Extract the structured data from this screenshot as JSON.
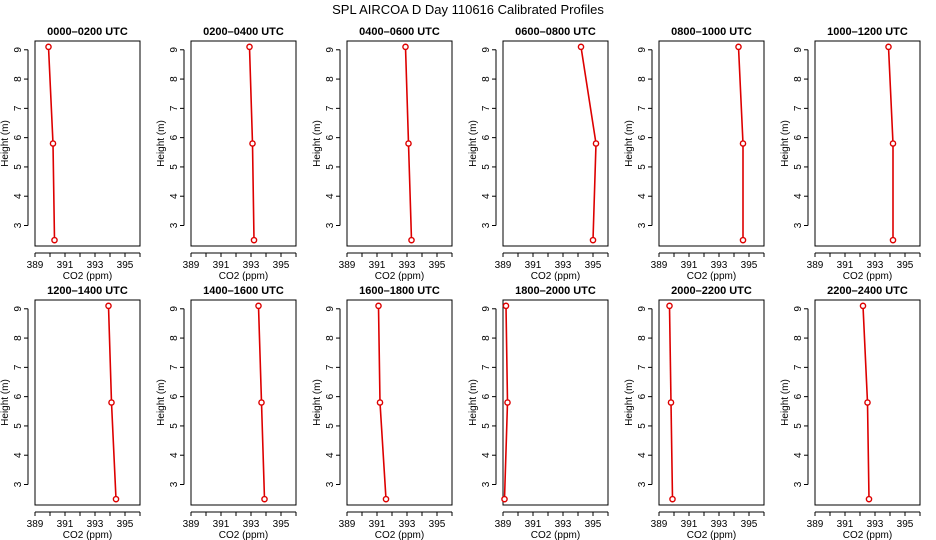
{
  "figure_title": "SPL AIRCOA D  Day 110616  Calibrated Profiles",
  "colors": {
    "series": "#dd0000",
    "axis": "#000000"
  },
  "chart_data": [
    {
      "type": "line",
      "title": "0000–0200 UTC",
      "xlabel": "CO2 (ppm)",
      "ylabel": "Height (m)",
      "xlim": [
        389,
        396
      ],
      "ylim": [
        2.3,
        9.3
      ],
      "x_ticks": [
        "389",
        "391",
        "393",
        "395"
      ],
      "y_ticks": [
        "3",
        "4",
        "5",
        "6",
        "7",
        "8",
        "9"
      ],
      "x": [
        389.9,
        390.2,
        390.3
      ],
      "y": [
        9.1,
        5.8,
        2.5
      ]
    },
    {
      "type": "line",
      "title": "0200–0400 UTC",
      "xlabel": "CO2 (ppm)",
      "ylabel": "Height (m)",
      "xlim": [
        389,
        396
      ],
      "ylim": [
        2.3,
        9.3
      ],
      "x_ticks": [
        "389",
        "391",
        "393",
        "395"
      ],
      "y_ticks": [
        "3",
        "4",
        "5",
        "6",
        "7",
        "8",
        "9"
      ],
      "x": [
        392.9,
        393.1,
        393.2
      ],
      "y": [
        9.1,
        5.8,
        2.5
      ]
    },
    {
      "type": "line",
      "title": "0400–0600 UTC",
      "xlabel": "CO2 (ppm)",
      "ylabel": "Height (m)",
      "xlim": [
        389,
        396
      ],
      "ylim": [
        2.3,
        9.3
      ],
      "x_ticks": [
        "389",
        "391",
        "393",
        "395"
      ],
      "y_ticks": [
        "3",
        "4",
        "5",
        "6",
        "7",
        "8",
        "9"
      ],
      "x": [
        392.9,
        393.1,
        393.3
      ],
      "y": [
        9.1,
        5.8,
        2.5
      ]
    },
    {
      "type": "line",
      "title": "0600–0800 UTC",
      "xlabel": "CO2 (ppm)",
      "ylabel": "Height (m)",
      "xlim": [
        389,
        396
      ],
      "ylim": [
        2.3,
        9.3
      ],
      "x_ticks": [
        "389",
        "391",
        "393",
        "395"
      ],
      "y_ticks": [
        "3",
        "4",
        "5",
        "6",
        "7",
        "8",
        "9"
      ],
      "x": [
        394.2,
        395.2,
        395.0
      ],
      "y": [
        9.1,
        5.8,
        2.5
      ]
    },
    {
      "type": "line",
      "title": "0800–1000 UTC",
      "xlabel": "CO2 (ppm)",
      "ylabel": "Height (m)",
      "xlim": [
        389,
        396
      ],
      "ylim": [
        2.3,
        9.3
      ],
      "x_ticks": [
        "389",
        "391",
        "393",
        "395"
      ],
      "y_ticks": [
        "3",
        "4",
        "5",
        "6",
        "7",
        "8",
        "9"
      ],
      "x": [
        394.3,
        394.6,
        394.6
      ],
      "y": [
        9.1,
        5.8,
        2.5
      ]
    },
    {
      "type": "line",
      "title": "1000–1200 UTC",
      "xlabel": "CO2 (ppm)",
      "ylabel": "Height (m)",
      "xlim": [
        389,
        396
      ],
      "ylim": [
        2.3,
        9.3
      ],
      "x_ticks": [
        "389",
        "391",
        "393",
        "395"
      ],
      "y_ticks": [
        "3",
        "4",
        "5",
        "6",
        "7",
        "8",
        "9"
      ],
      "x": [
        393.9,
        394.2,
        394.2
      ],
      "y": [
        9.1,
        5.8,
        2.5
      ]
    },
    {
      "type": "line",
      "title": "1200–1400 UTC",
      "xlabel": "CO2 (ppm)",
      "ylabel": "Height (m)",
      "xlim": [
        389,
        396
      ],
      "ylim": [
        2.3,
        9.3
      ],
      "x_ticks": [
        "389",
        "391",
        "393",
        "395"
      ],
      "y_ticks": [
        "3",
        "4",
        "5",
        "6",
        "7",
        "8",
        "9"
      ],
      "x": [
        393.9,
        394.1,
        394.4
      ],
      "y": [
        9.1,
        5.8,
        2.5
      ]
    },
    {
      "type": "line",
      "title": "1400–1600 UTC",
      "xlabel": "CO2 (ppm)",
      "ylabel": "Height (m)",
      "xlim": [
        389,
        396
      ],
      "ylim": [
        2.3,
        9.3
      ],
      "x_ticks": [
        "389",
        "391",
        "393",
        "395"
      ],
      "y_ticks": [
        "3",
        "4",
        "5",
        "6",
        "7",
        "8",
        "9"
      ],
      "x": [
        393.5,
        393.7,
        393.9
      ],
      "y": [
        9.1,
        5.8,
        2.5
      ]
    },
    {
      "type": "line",
      "title": "1600–1800 UTC",
      "xlabel": "CO2 (ppm)",
      "ylabel": "Height (m)",
      "xlim": [
        389,
        396
      ],
      "ylim": [
        2.3,
        9.3
      ],
      "x_ticks": [
        "389",
        "391",
        "393",
        "395"
      ],
      "y_ticks": [
        "3",
        "4",
        "5",
        "6",
        "7",
        "8",
        "9"
      ],
      "x": [
        391.1,
        391.2,
        391.6
      ],
      "y": [
        9.1,
        5.8,
        2.5
      ]
    },
    {
      "type": "line",
      "title": "1800–2000 UTC",
      "xlabel": "CO2 (ppm)",
      "ylabel": "Height (m)",
      "xlim": [
        389,
        396
      ],
      "ylim": [
        2.3,
        9.3
      ],
      "x_ticks": [
        "389",
        "391",
        "393",
        "395"
      ],
      "y_ticks": [
        "3",
        "4",
        "5",
        "6",
        "7",
        "8",
        "9"
      ],
      "x": [
        389.2,
        389.3,
        389.1
      ],
      "y": [
        9.1,
        5.8,
        2.5
      ]
    },
    {
      "type": "line",
      "title": "2000–2200 UTC",
      "xlabel": "CO2 (ppm)",
      "ylabel": "Height (m)",
      "xlim": [
        389,
        396
      ],
      "ylim": [
        2.3,
        9.3
      ],
      "x_ticks": [
        "389",
        "391",
        "393",
        "395"
      ],
      "y_ticks": [
        "3",
        "4",
        "5",
        "6",
        "7",
        "8",
        "9"
      ],
      "x": [
        389.7,
        389.8,
        389.9
      ],
      "y": [
        9.1,
        5.8,
        2.5
      ]
    },
    {
      "type": "line",
      "title": "2200–2400 UTC",
      "xlabel": "CO2 (ppm)",
      "ylabel": "Height (m)",
      "xlim": [
        389,
        396
      ],
      "ylim": [
        2.3,
        9.3
      ],
      "x_ticks": [
        "389",
        "391",
        "393",
        "395"
      ],
      "y_ticks": [
        "3",
        "4",
        "5",
        "6",
        "7",
        "8",
        "9"
      ],
      "x": [
        392.2,
        392.5,
        392.6
      ],
      "y": [
        9.1,
        5.8,
        2.5
      ]
    }
  ]
}
